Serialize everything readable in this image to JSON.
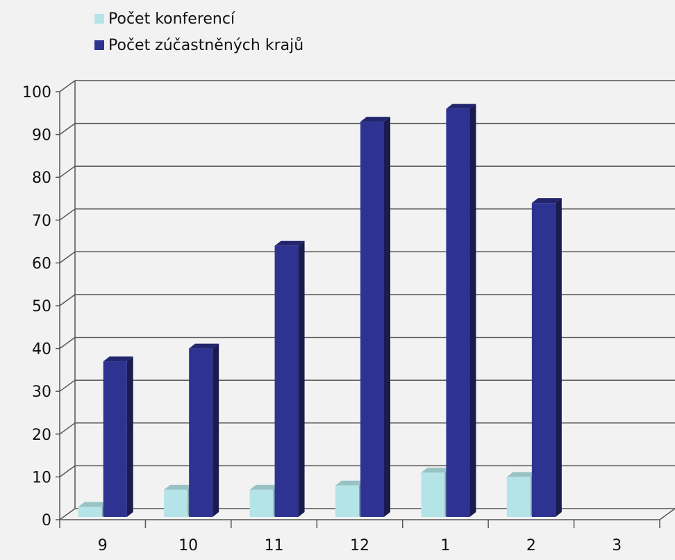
{
  "chart_data": {
    "type": "bar",
    "title": "",
    "xlabel": "",
    "ylabel": "",
    "categories": [
      "9",
      "10",
      "11",
      "12",
      "1",
      "2",
      "3"
    ],
    "ylim": [
      0,
      100
    ],
    "yticks": [
      "0",
      "10",
      "20",
      "30",
      "40",
      "50",
      "60",
      "70",
      "80",
      "90",
      "100"
    ],
    "grid": true,
    "legend_position": "top-left",
    "series": [
      {
        "name": "Počet konferencí",
        "color": "#b4e4e8",
        "values": [
          3,
          7,
          7,
          8,
          11,
          10,
          null
        ]
      },
      {
        "name": "Počet zúčastněných krajů",
        "color": "#2e3392",
        "values": [
          37,
          40,
          64,
          93,
          96,
          74,
          null
        ]
      }
    ]
  }
}
